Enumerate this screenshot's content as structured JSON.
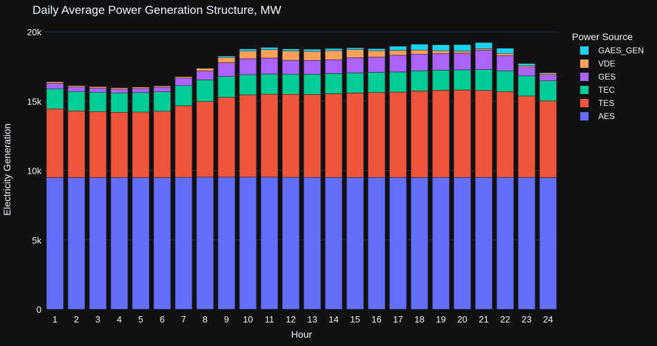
{
  "chart_data": {
    "type": "bar",
    "stacked": true,
    "title": "Daily Average Power Generation Structure, MW",
    "xlabel": "Hour",
    "ylabel": "Electricity Generation",
    "ylim": [
      0,
      20000
    ],
    "yticks": [
      0,
      5000,
      10000,
      15000,
      20000
    ],
    "ytick_labels": [
      "0",
      "5k",
      "10k",
      "15k",
      "20k"
    ],
    "grid": true,
    "legend": {
      "title": "Power Source",
      "placement": "right"
    },
    "categories": [
      "1",
      "2",
      "3",
      "4",
      "5",
      "6",
      "7",
      "8",
      "9",
      "10",
      "11",
      "12",
      "13",
      "14",
      "15",
      "16",
      "17",
      "18",
      "19",
      "20",
      "21",
      "22",
      "23",
      "24"
    ],
    "series": [
      {
        "name": "AES",
        "color": "#636efa",
        "values": [
          9500,
          9500,
          9500,
          9500,
          9500,
          9500,
          9520,
          9530,
          9530,
          9530,
          9530,
          9520,
          9510,
          9510,
          9510,
          9510,
          9510,
          9510,
          9510,
          9510,
          9510,
          9510,
          9510,
          9500
        ]
      },
      {
        "name": "TES",
        "color": "#ef553b",
        "values": [
          4950,
          4800,
          4750,
          4700,
          4720,
          4780,
          5150,
          5450,
          5750,
          5930,
          5980,
          5980,
          5980,
          6030,
          6080,
          6120,
          6150,
          6230,
          6280,
          6300,
          6270,
          6180,
          5860,
          5520
        ]
      },
      {
        "name": "TEC",
        "color": "#00cc96",
        "values": [
          1450,
          1400,
          1400,
          1400,
          1400,
          1400,
          1450,
          1550,
          1500,
          1450,
          1450,
          1450,
          1450,
          1450,
          1450,
          1450,
          1450,
          1450,
          1450,
          1450,
          1500,
          1500,
          1450,
          1450
        ]
      },
      {
        "name": "GES",
        "color": "#ab63fa",
        "values": [
          400,
          330,
          300,
          270,
          300,
          330,
          550,
          650,
          1000,
          1150,
          1150,
          1000,
          1000,
          1000,
          1100,
          1100,
          1200,
          1200,
          1200,
          1200,
          1400,
          1100,
          650,
          450
        ]
      },
      {
        "name": "VDE",
        "color": "#ffa15a",
        "values": [
          100,
          100,
          100,
          100,
          100,
          100,
          100,
          200,
          380,
          560,
          610,
          680,
          660,
          660,
          580,
          460,
          350,
          300,
          200,
          150,
          100,
          150,
          100,
          100
        ]
      },
      {
        "name": "GAES_GEN",
        "color": "#19d3f3",
        "values": [
          20,
          20,
          20,
          20,
          20,
          20,
          20,
          20,
          100,
          150,
          160,
          140,
          150,
          150,
          130,
          150,
          300,
          420,
          430,
          470,
          450,
          380,
          150,
          50
        ]
      }
    ]
  }
}
